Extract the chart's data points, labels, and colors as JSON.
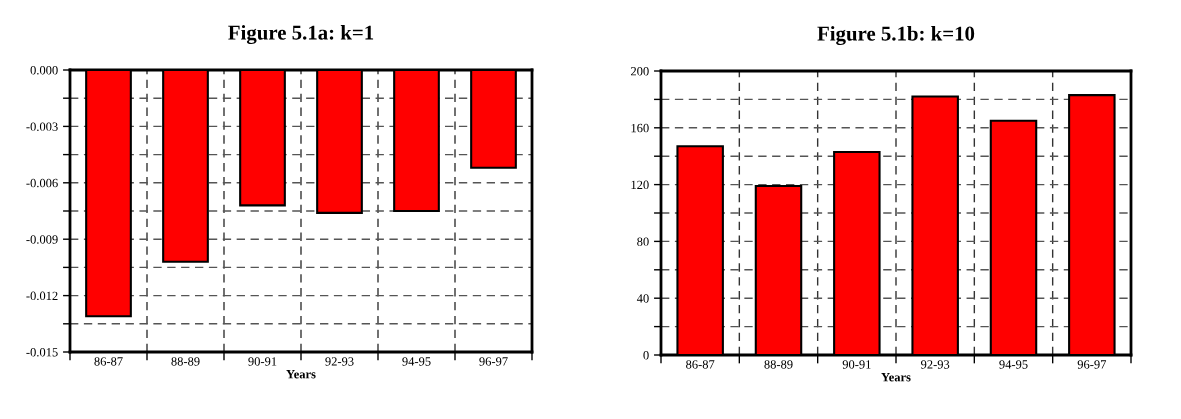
{
  "chart_data": [
    {
      "type": "bar",
      "title": "Figure 5.1a: k=1",
      "xlabel": "Years",
      "categories": [
        "86-87",
        "88-89",
        "90-91",
        "92-93",
        "94-95",
        "96-97"
      ],
      "values": [
        -0.0131,
        -0.0102,
        -0.0072,
        -0.0076,
        -0.0075,
        -0.0052
      ],
      "color": "#ff0000",
      "ylim": [
        -0.015,
        0
      ],
      "yticks": [
        {
          "value": -0.015,
          "label": "-0.015"
        },
        {
          "value": -0.0135,
          "label": null
        },
        {
          "value": -0.012,
          "label": "-0.012"
        },
        {
          "value": -0.0105,
          "label": null
        },
        {
          "value": -0.009,
          "label": "-0.009"
        },
        {
          "value": -0.0075,
          "label": null
        },
        {
          "value": -0.006,
          "label": "-0.006"
        },
        {
          "value": -0.0045,
          "label": null
        },
        {
          "value": -0.003,
          "label": "-0.003"
        },
        {
          "value": -0.0015,
          "label": null
        },
        {
          "value": 0,
          "label": "0.000"
        }
      ],
      "grid": true
    },
    {
      "type": "bar",
      "title": "Figure 5.1b: k=10",
      "xlabel": "Years",
      "categories": [
        "86-87",
        "88-89",
        "90-91",
        "92-93",
        "94-95",
        "96-97"
      ],
      "values": [
        147,
        119,
        143,
        182,
        165,
        183
      ],
      "color": "#ff0000",
      "ylim": [
        0,
        200
      ],
      "yticks": [
        0,
        {
          "value": 20,
          "label": null
        },
        40,
        {
          "value": 60,
          "label": null
        },
        80,
        {
          "value": 100,
          "label": null
        },
        120,
        {
          "value": 140,
          "label": null
        },
        160,
        {
          "value": 180,
          "label": null
        },
        200
      ],
      "grid": true
    }
  ]
}
